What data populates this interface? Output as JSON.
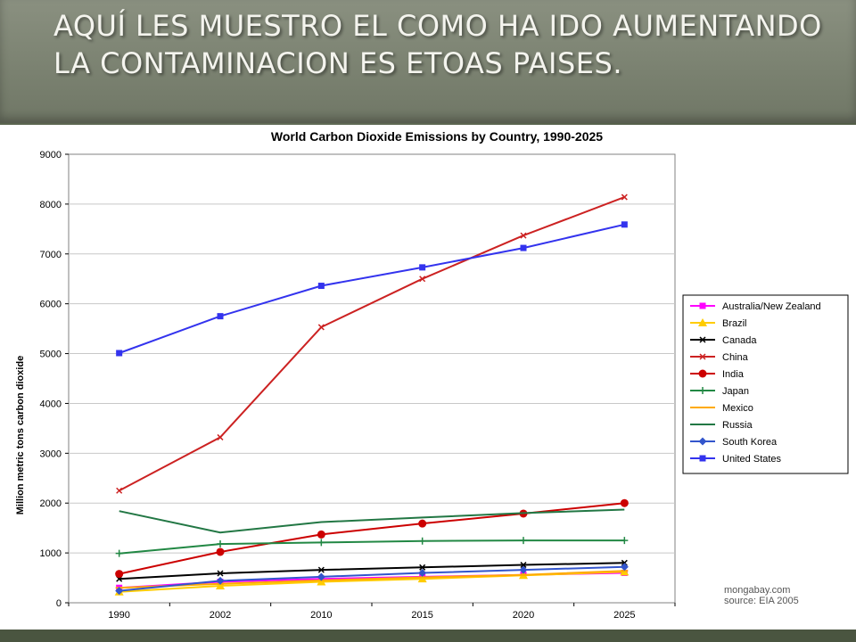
{
  "slide": {
    "title": "AQUÍ LES MUESTRO EL COMO HA IDO AUMENTANDO LA CONTAMINACION ES ETOAS PAISES."
  },
  "credit": {
    "line1": "mongabay.com",
    "line2": "source: EIA 2005"
  },
  "chart_data": {
    "type": "line",
    "title": "World Carbon Dioxide Emissions by Country, 1990-2025",
    "xlabel": "",
    "ylabel": "Million metric tons carbon dioxide",
    "categories": [
      "1990",
      "2002",
      "2010",
      "2015",
      "2020",
      "2025"
    ],
    "ylim": [
      0,
      9000
    ],
    "yticks": [
      0,
      1000,
      2000,
      3000,
      4000,
      5000,
      6000,
      7000,
      8000,
      9000
    ],
    "grid": true,
    "legend_position": "right",
    "series": [
      {
        "name": "Australia/New Zealand",
        "color": "#ff00ff",
        "marker": "square",
        "values": [
          300,
          420,
          480,
          520,
          560,
          600
        ]
      },
      {
        "name": "Brazil",
        "color": "#ffcc00",
        "marker": "triangle",
        "values": [
          220,
          340,
          420,
          480,
          550,
          620
        ]
      },
      {
        "name": "Canada",
        "color": "#000000",
        "marker": "x",
        "values": [
          480,
          590,
          660,
          710,
          760,
          800
        ]
      },
      {
        "name": "China",
        "color": "#cc2222",
        "marker": "x",
        "values": [
          2250,
          3320,
          5530,
          6500,
          7370,
          8140
        ]
      },
      {
        "name": "India",
        "color": "#cc0000",
        "marker": "circle",
        "values": [
          580,
          1020,
          1370,
          1590,
          1790,
          2000
        ]
      },
      {
        "name": "Japan",
        "color": "#228844",
        "marker": "plus",
        "values": [
          990,
          1180,
          1210,
          1240,
          1250,
          1250
        ]
      },
      {
        "name": "Mexico",
        "color": "#ffaa00",
        "marker": "dash",
        "values": [
          300,
          380,
          450,
          510,
          560,
          640
        ]
      },
      {
        "name": "Russia",
        "color": "#227744",
        "marker": "none",
        "values": [
          1840,
          1410,
          1620,
          1710,
          1800,
          1870
        ]
      },
      {
        "name": "South Korea",
        "color": "#3355cc",
        "marker": "diamond",
        "values": [
          240,
          440,
          520,
          600,
          660,
          720
        ]
      },
      {
        "name": "United States",
        "color": "#3333ee",
        "marker": "square",
        "values": [
          5010,
          5750,
          6360,
          6730,
          7120,
          7590
        ]
      }
    ]
  }
}
